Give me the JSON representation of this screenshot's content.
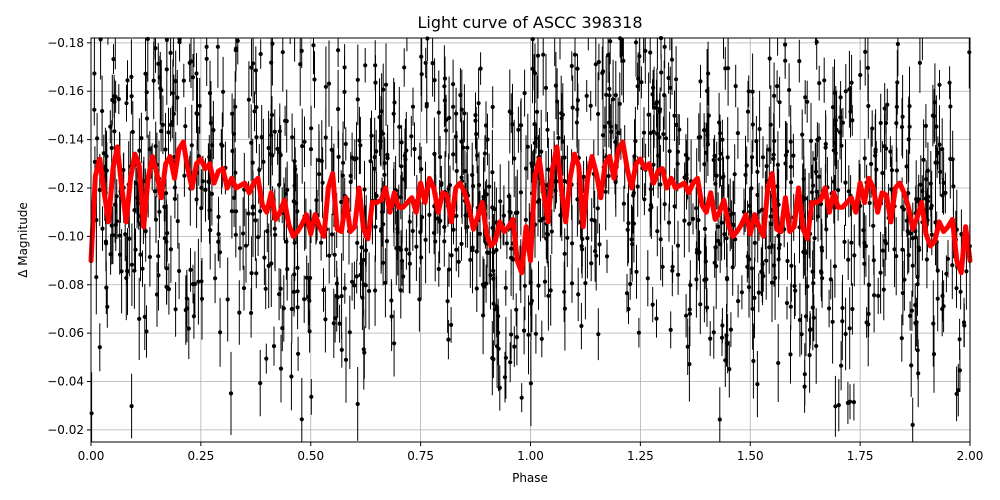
{
  "chart_data": {
    "type": "scatter",
    "title": "Light curve of ASCC 398318",
    "xlabel": "Phase",
    "ylabel": "Δ Magnitude",
    "xlim": [
      0.0,
      2.0
    ],
    "ylim": [
      -0.015,
      -0.182
    ],
    "y_inverted": true,
    "grid": true,
    "x_ticks": [
      "0.00",
      "0.25",
      "0.50",
      "0.75",
      "1.00",
      "1.25",
      "1.50",
      "1.75",
      "2.00"
    ],
    "x_tick_values": [
      0.0,
      0.25,
      0.5,
      0.75,
      1.0,
      1.25,
      1.5,
      1.75,
      2.0
    ],
    "y_ticks": [
      "−0.18",
      "−0.16",
      "−0.14",
      "−0.12",
      "−0.10",
      "−0.08",
      "−0.06",
      "−0.04",
      "−0.02"
    ],
    "y_tick_values": [
      -0.18,
      -0.16,
      -0.14,
      -0.12,
      -0.1,
      -0.08,
      -0.06,
      -0.04,
      -0.02
    ],
    "series": [
      {
        "kind": "points_with_errorbars",
        "color": "#000000",
        "note": "dense scatter of ~1000 measurements per phase cycle spanning roughly -0.02 to -0.18"
      },
      {
        "kind": "model_line",
        "color": "#ff0000",
        "x": [
          0.0,
          0.01,
          0.02,
          0.03,
          0.04,
          0.05,
          0.06,
          0.07,
          0.08,
          0.09,
          0.1,
          0.11,
          0.12,
          0.13,
          0.14,
          0.15,
          0.16,
          0.17,
          0.18,
          0.19,
          0.2,
          0.21,
          0.22,
          0.23,
          0.24,
          0.25,
          0.26,
          0.27,
          0.28,
          0.29,
          0.3,
          0.31,
          0.32,
          0.33,
          0.34,
          0.35,
          0.36,
          0.37,
          0.38,
          0.39,
          0.4,
          0.41,
          0.42,
          0.43,
          0.44,
          0.45,
          0.46,
          0.47,
          0.48,
          0.49,
          0.5,
          0.51,
          0.52,
          0.53,
          0.54,
          0.55,
          0.56,
          0.57,
          0.58,
          0.59,
          0.6,
          0.61,
          0.62,
          0.63,
          0.64,
          0.65,
          0.66,
          0.67,
          0.68,
          0.69,
          0.7,
          0.71,
          0.72,
          0.73,
          0.74,
          0.75,
          0.76,
          0.77,
          0.78,
          0.79,
          0.8,
          0.81,
          0.82,
          0.83,
          0.84,
          0.85,
          0.86,
          0.87,
          0.88,
          0.89,
          0.9,
          0.91,
          0.92,
          0.93,
          0.94,
          0.95,
          0.96,
          0.97,
          0.98,
          0.99,
          1.0
        ],
        "y": [
          -0.09,
          -0.125,
          -0.132,
          -0.118,
          -0.106,
          -0.128,
          -0.137,
          -0.12,
          -0.106,
          -0.124,
          -0.134,
          -0.129,
          -0.104,
          -0.124,
          -0.133,
          -0.126,
          -0.116,
          -0.13,
          -0.133,
          -0.124,
          -0.136,
          -0.139,
          -0.128,
          -0.12,
          -0.13,
          -0.132,
          -0.128,
          -0.13,
          -0.122,
          -0.127,
          -0.128,
          -0.12,
          -0.124,
          -0.12,
          -0.121,
          -0.122,
          -0.118,
          -0.122,
          -0.124,
          -0.113,
          -0.11,
          -0.118,
          -0.107,
          -0.11,
          -0.115,
          -0.105,
          -0.1,
          -0.102,
          -0.105,
          -0.109,
          -0.101,
          -0.109,
          -0.104,
          -0.1,
          -0.12,
          -0.126,
          -0.103,
          -0.102,
          -0.116,
          -0.102,
          -0.104,
          -0.12,
          -0.103,
          -0.099,
          -0.114,
          -0.114,
          -0.115,
          -0.12,
          -0.11,
          -0.118,
          -0.112,
          -0.112,
          -0.114,
          -0.116,
          -0.11,
          -0.122,
          -0.114,
          -0.124,
          -0.12,
          -0.11,
          -0.118,
          -0.117,
          -0.106,
          -0.12,
          -0.122,
          -0.118,
          -0.112,
          -0.103,
          -0.108,
          -0.114,
          -0.101,
          -0.096,
          -0.098,
          -0.106,
          -0.102,
          -0.104,
          -0.107,
          -0.09,
          -0.085,
          -0.104,
          -0.09
        ]
      }
    ]
  }
}
